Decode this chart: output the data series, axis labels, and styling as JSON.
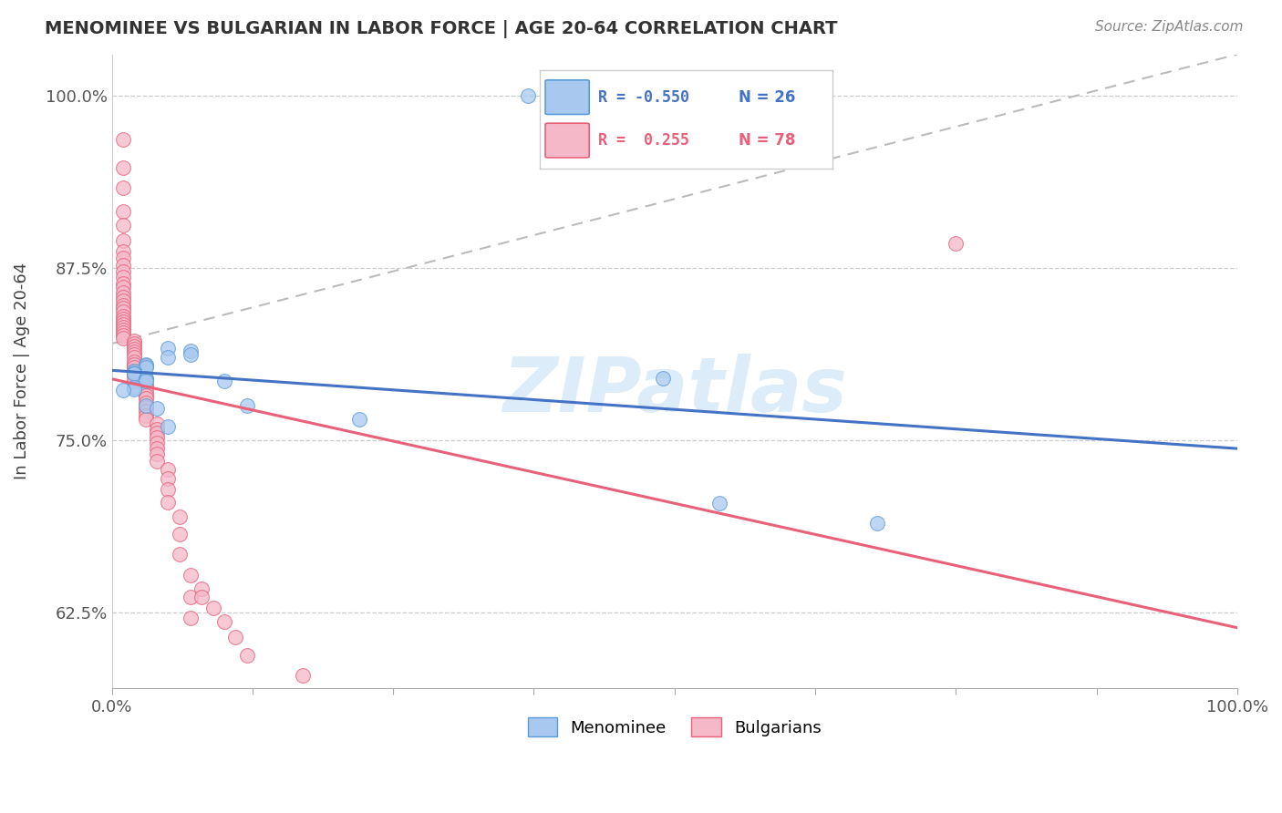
{
  "title": "MENOMINEE VS BULGARIAN IN LABOR FORCE | AGE 20-64 CORRELATION CHART",
  "source": "Source: ZipAtlas.com",
  "ylabel": "In Labor Force | Age 20-64",
  "legend_blue_R": "-0.550",
  "legend_blue_N": "26",
  "legend_pink_R": "0.255",
  "legend_pink_N": "78",
  "xlim": [
    0.0,
    1.0
  ],
  "ylim": [
    0.57,
    1.03
  ],
  "yticks": [
    0.625,
    0.75,
    0.875,
    1.0
  ],
  "ytick_labels": [
    "62.5%",
    "75.0%",
    "87.5%",
    "100.0%"
  ],
  "xtick_labels": [
    "0.0%",
    "100.0%"
  ],
  "blue_scatter_color": "#A8C8F0",
  "blue_edge_color": "#5B9BD5",
  "pink_scatter_color": "#F4B8C8",
  "pink_edge_color": "#E8607A",
  "blue_line_color": "#4472C4",
  "pink_line_color": "#E8607A",
  "ref_line_color": "#BBBBBB",
  "menominee_x": [
    0.37,
    0.05,
    0.07,
    0.07,
    0.05,
    0.03,
    0.03,
    0.03,
    0.02,
    0.02,
    0.02,
    0.03,
    0.03,
    0.03,
    0.02,
    0.02,
    0.01,
    0.03,
    0.04,
    0.05,
    0.1,
    0.12,
    0.22,
    0.49,
    0.54,
    0.68
  ],
  "menominee_y": [
    1.0,
    0.817,
    0.815,
    0.812,
    0.81,
    0.805,
    0.804,
    0.803,
    0.8,
    0.799,
    0.798,
    0.795,
    0.794,
    0.793,
    0.788,
    0.787,
    0.786,
    0.775,
    0.773,
    0.76,
    0.793,
    0.775,
    0.765,
    0.795,
    0.704,
    0.69
  ],
  "bulgarian_x": [
    0.01,
    0.01,
    0.01,
    0.01,
    0.01,
    0.01,
    0.01,
    0.01,
    0.01,
    0.01,
    0.01,
    0.01,
    0.01,
    0.01,
    0.01,
    0.01,
    0.01,
    0.01,
    0.01,
    0.01,
    0.01,
    0.01,
    0.01,
    0.01,
    0.01,
    0.01,
    0.01,
    0.01,
    0.02,
    0.02,
    0.02,
    0.02,
    0.02,
    0.02,
    0.02,
    0.02,
    0.02,
    0.02,
    0.02,
    0.02,
    0.02,
    0.02,
    0.03,
    0.03,
    0.03,
    0.03,
    0.03,
    0.03,
    0.03,
    0.03,
    0.03,
    0.03,
    0.04,
    0.04,
    0.04,
    0.04,
    0.04,
    0.04,
    0.04,
    0.04,
    0.05,
    0.05,
    0.05,
    0.05,
    0.06,
    0.06,
    0.06,
    0.07,
    0.07,
    0.07,
    0.08,
    0.08,
    0.09,
    0.1,
    0.11,
    0.12,
    0.17,
    0.75
  ],
  "bulgarian_y": [
    0.968,
    0.948,
    0.933,
    0.916,
    0.906,
    0.895,
    0.887,
    0.882,
    0.877,
    0.872,
    0.868,
    0.864,
    0.861,
    0.857,
    0.854,
    0.851,
    0.848,
    0.846,
    0.843,
    0.84,
    0.838,
    0.836,
    0.834,
    0.832,
    0.83,
    0.828,
    0.826,
    0.824,
    0.822,
    0.82,
    0.818,
    0.816,
    0.814,
    0.812,
    0.81,
    0.807,
    0.805,
    0.803,
    0.8,
    0.798,
    0.796,
    0.793,
    0.79,
    0.788,
    0.785,
    0.782,
    0.78,
    0.777,
    0.774,
    0.771,
    0.768,
    0.765,
    0.762,
    0.758,
    0.755,
    0.752,
    0.748,
    0.744,
    0.74,
    0.735,
    0.729,
    0.722,
    0.714,
    0.705,
    0.694,
    0.682,
    0.667,
    0.652,
    0.636,
    0.621,
    0.642,
    0.636,
    0.628,
    0.618,
    0.607,
    0.594,
    0.579,
    0.893
  ],
  "watermark_text": "ZIPatlas",
  "bg_color": "#FFFFFF",
  "grid_color": "#CCCCCC"
}
